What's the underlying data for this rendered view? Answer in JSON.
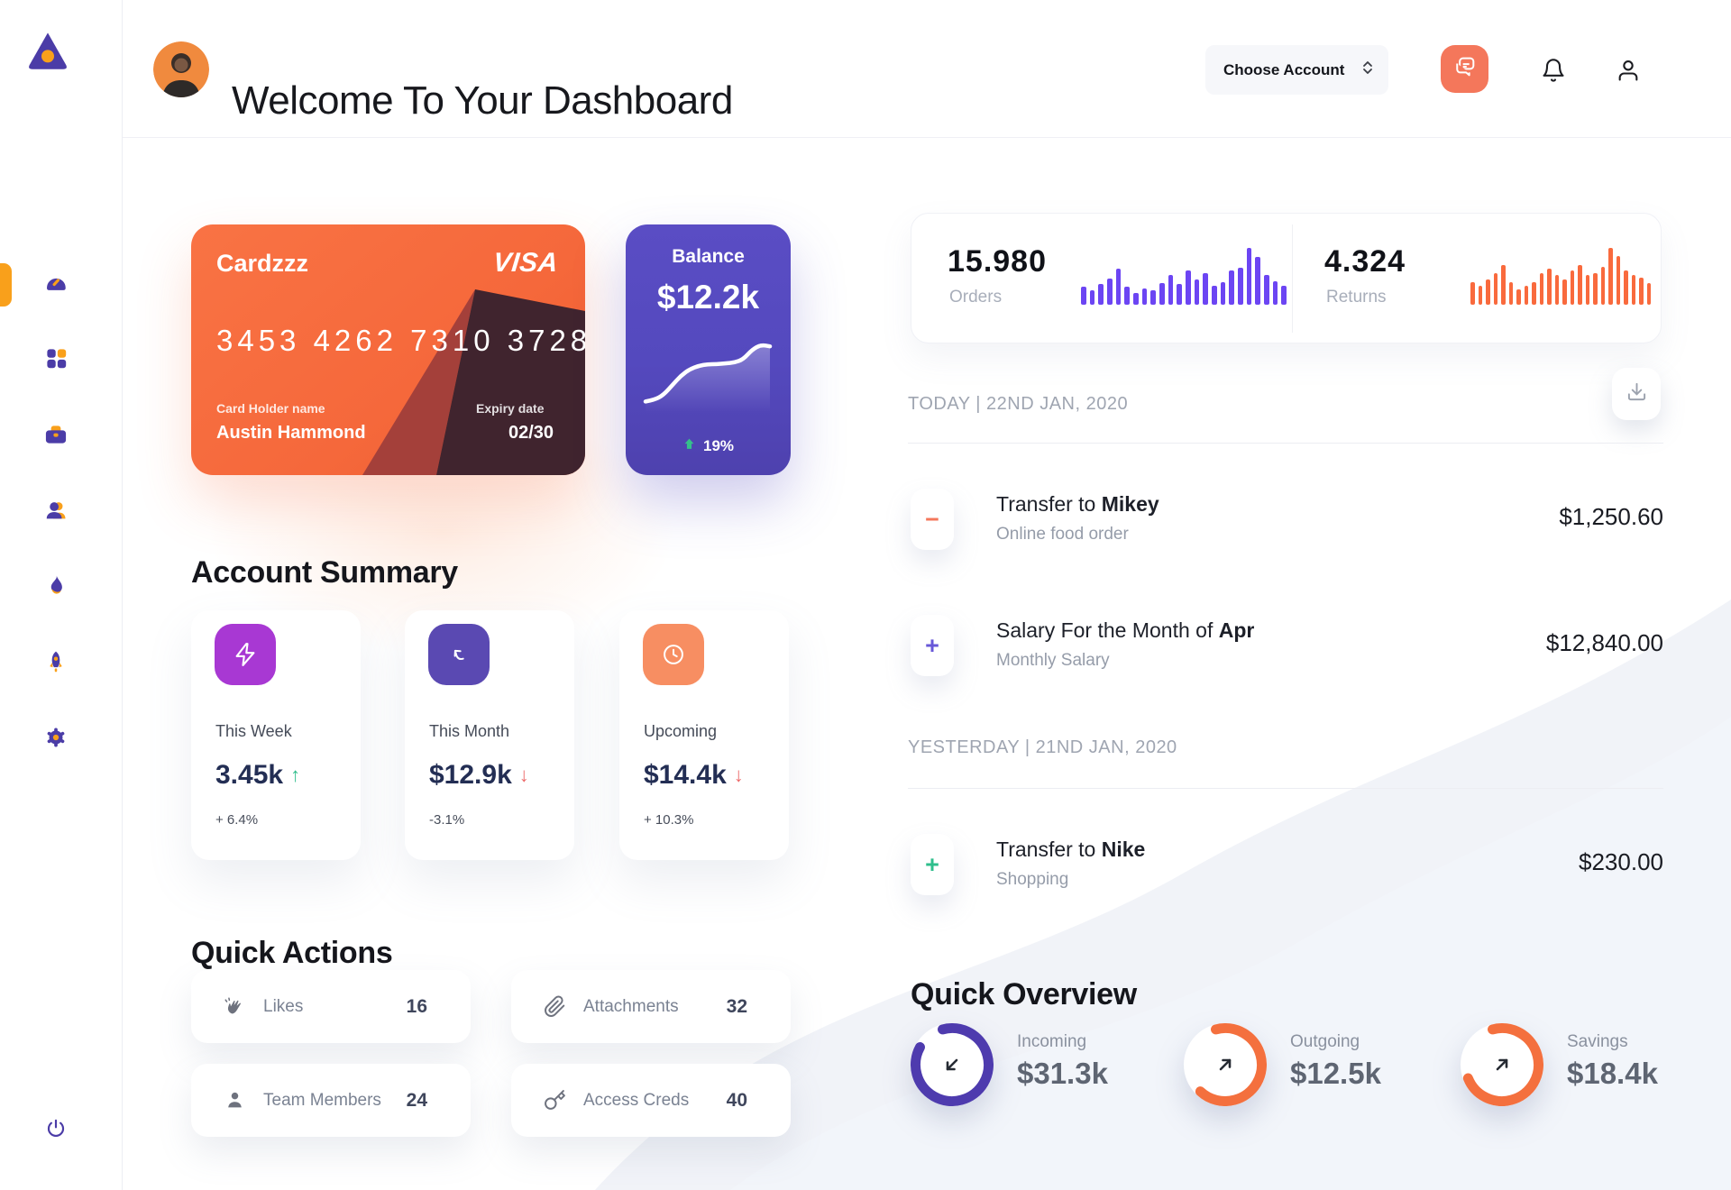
{
  "colors": {
    "accent_orange": "#F5683B",
    "salmon": "#F4775B",
    "purple": "#5449BE",
    "deep_purple": "#4B3CA7",
    "icon_orange": "#F9A01B",
    "bar_purple": "#6C45F3",
    "bar_orange": "#F96A3D",
    "green": "#2FBE8C",
    "red": "#ED6B6B",
    "navy": "#232E54",
    "magenta": "#A838D3",
    "summary_purple": "#5A49B2",
    "summary_salmon": "#F78E62",
    "ring_purple": "#4E3BAE",
    "ring_orange": "#F4703E"
  },
  "sidebar": {
    "logo": "triangle-logo",
    "items": [
      {
        "icon": "speedometer",
        "active": true
      },
      {
        "icon": "grid",
        "active": false
      },
      {
        "icon": "briefcase",
        "active": false
      },
      {
        "icon": "users",
        "active": false
      },
      {
        "icon": "flame",
        "active": false
      },
      {
        "icon": "rocket",
        "active": false
      },
      {
        "icon": "gear",
        "active": false
      }
    ],
    "power_icon": "power"
  },
  "header": {
    "title": "Welcome To Your Dashboard",
    "account_selector": "Choose Account",
    "icons": [
      "chat-bubbles",
      "bell",
      "user"
    ]
  },
  "credit_card": {
    "name": "Cardzzz",
    "brand": "VISA",
    "number": "3453 4262 7310 3728",
    "holder_label": "Card Holder name",
    "holder": "Austin Hammond",
    "expiry_label": "Expiry date",
    "expiry": "02/30"
  },
  "balance_card": {
    "title": "Balance",
    "amount": "$12.2k",
    "change": "19%",
    "trend": "up"
  },
  "account_summary": {
    "title": "Account Summary",
    "items": [
      {
        "icon": "lightning",
        "label": "This Week",
        "value": "3.45k",
        "arrow": "↑",
        "trend": "up",
        "delta": "+ 6.4%"
      },
      {
        "icon": "arrow-up-left",
        "label": "This Month",
        "value": "$12.9k",
        "arrow": "↓",
        "trend": "down",
        "delta": "-3.1%"
      },
      {
        "icon": "clock",
        "label": "Upcoming",
        "value": "$14.4k",
        "arrow": "↓",
        "trend": "down",
        "delta": "+ 10.3%"
      }
    ]
  },
  "quick_actions": {
    "title": "Quick Actions",
    "items": [
      {
        "icon": "clap",
        "label": "Likes",
        "count": "16"
      },
      {
        "icon": "paperclip",
        "label": "Attachments",
        "count": "32"
      },
      {
        "icon": "person",
        "label": "Team Members",
        "count": "24"
      },
      {
        "icon": "key",
        "label": "Access Creds",
        "count": "40"
      }
    ]
  },
  "stats": {
    "orders": {
      "value": "15.980",
      "label": "Orders"
    },
    "returns": {
      "value": "4.324",
      "label": "Returns"
    }
  },
  "chart_data": [
    {
      "type": "bar",
      "name": "orders-sparkline",
      "title": "Orders activity",
      "color": "#6C45F3",
      "values": [
        0.32,
        0.25,
        0.36,
        0.46,
        0.63,
        0.32,
        0.2,
        0.28,
        0.25,
        0.38,
        0.52,
        0.36,
        0.6,
        0.45,
        0.55,
        0.33,
        0.4,
        0.6,
        0.65,
        1.0,
        0.84,
        0.52,
        0.42,
        0.33
      ]
    },
    {
      "type": "bar",
      "name": "returns-sparkline",
      "title": "Returns activity",
      "color": "#F96A3D",
      "values": [
        0.4,
        0.34,
        0.44,
        0.55,
        0.7,
        0.4,
        0.27,
        0.34,
        0.4,
        0.55,
        0.64,
        0.53,
        0.44,
        0.6,
        0.7,
        0.53,
        0.55,
        0.67,
        1.0,
        0.86,
        0.6,
        0.53,
        0.48,
        0.38
      ]
    },
    {
      "type": "line",
      "name": "balance-sparkline",
      "title": "Balance trend",
      "color": "#FFFFFF",
      "values": [
        14,
        16,
        22,
        34,
        46,
        54,
        58,
        60,
        60,
        61,
        62,
        66,
        78,
        84,
        82
      ]
    }
  ],
  "transactions": {
    "download_icon": "download",
    "groups": [
      {
        "header": "TODAY | 22ND JAN, 2020",
        "rows": [
          {
            "sign": "−",
            "sign_color": "salmon",
            "title": "Transfer to ",
            "title_bold": "Mikey",
            "subtitle": "Online food order",
            "amount": "$1,250.60"
          },
          {
            "sign": "+",
            "sign_color": "purple",
            "title": "Salary For the Month of ",
            "title_bold": "Apr",
            "subtitle": "Monthly Salary",
            "amount": "$12,840.00"
          }
        ]
      },
      {
        "header": "YESTERDAY | 21ND JAN, 2020",
        "rows": [
          {
            "sign": "+",
            "sign_color": "green",
            "title": "Transfer to ",
            "title_bold": "Nike",
            "subtitle": "Shopping",
            "amount": "$230.00"
          }
        ]
      }
    ]
  },
  "quick_overview": {
    "title": "Quick Overview",
    "items": [
      {
        "label": "Incoming",
        "value": "$31.3k",
        "percent": 87,
        "color": "#4E3BAE",
        "arrow": "down-left"
      },
      {
        "label": "Outgoing",
        "value": "$12.5k",
        "percent": 66,
        "color": "#F4703E",
        "arrow": "up-right"
      },
      {
        "label": "Savings",
        "value": "$18.4k",
        "percent": 73,
        "color": "#F4703E",
        "arrow": "up-right"
      }
    ]
  }
}
